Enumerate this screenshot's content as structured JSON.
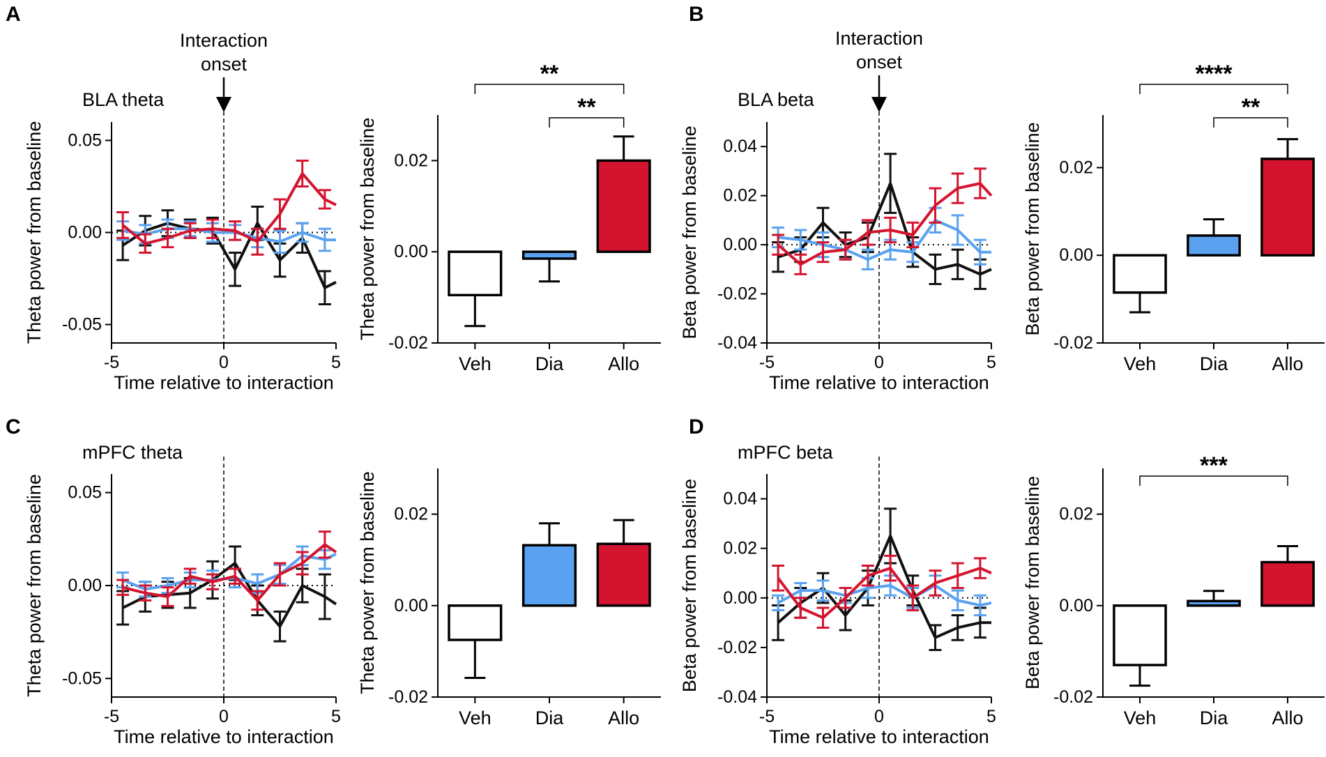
{
  "figure": {
    "shared": {
      "line_xlabel": "Time relative to interaction",
      "x_ticks": [
        "-5",
        "0",
        "5"
      ],
      "onset_label": [
        "Interaction",
        "onset"
      ]
    },
    "colors": {
      "veh": "#111111",
      "dia": "#5aa2f0",
      "allo": "#d4142e",
      "veh_bar_fill": "#ffffff"
    },
    "panels": [
      {
        "letter": "A",
        "line_title": "BLA theta",
        "ylabel": "Theta power from baseline",
        "show_onset": true,
        "line_yticks": [
          "0.05",
          "0.00",
          "-0.05"
        ],
        "bar_yticks": [
          "0.02",
          "0.00",
          "-0.02"
        ],
        "significance": [
          {
            "from": "Veh",
            "to": "Allo",
            "label": "**"
          },
          {
            "from": "Dia",
            "to": "Allo",
            "label": "**"
          }
        ]
      },
      {
        "letter": "B",
        "line_title": "BLA beta",
        "ylabel": "Beta power from baseline",
        "show_onset": true,
        "line_yticks": [
          "0.04",
          "0.02",
          "0.00",
          "-0.02",
          "-0.04"
        ],
        "bar_yticks": [
          "0.02",
          "0.00",
          "-0.02"
        ],
        "significance": [
          {
            "from": "Veh",
            "to": "Allo",
            "label": "****"
          },
          {
            "from": "Dia",
            "to": "Allo",
            "label": "**"
          }
        ]
      },
      {
        "letter": "C",
        "line_title": "mPFC theta",
        "ylabel": "Theta power from baseline",
        "show_onset": false,
        "line_yticks": [
          "0.05",
          "0.00",
          "-0.05"
        ],
        "bar_yticks": [
          "0.02",
          "0.00",
          "-0.02"
        ],
        "significance": []
      },
      {
        "letter": "D",
        "line_title": "mPFC beta",
        "ylabel": "Beta power from baseline",
        "show_onset": false,
        "line_yticks": [
          "0.04",
          "0.02",
          "0.00",
          "-0.02",
          "-0.04"
        ],
        "bar_yticks": [
          "0.02",
          "0.00",
          "-0.02"
        ],
        "significance": [
          {
            "from": "Veh",
            "to": "Allo",
            "label": "***"
          }
        ]
      }
    ]
  },
  "chart_data": [
    {
      "panel": "A",
      "type": "line",
      "title": "BLA theta",
      "xlabel": "Time relative to interaction",
      "ylabel": "Theta power from baseline",
      "xlim": [
        -5,
        5
      ],
      "ylim": [
        -0.06,
        0.06
      ],
      "x": [
        -4.5,
        -3.5,
        -2.5,
        -1.5,
        -0.5,
        0.5,
        1.5,
        2.5,
        3.5,
        4.5,
        5
      ],
      "series": [
        {
          "name": "Veh",
          "values": [
            -0.007,
            0.001,
            0.005,
            0.002,
            0.001,
            -0.02,
            0.005,
            -0.015,
            -0.003,
            -0.03,
            -0.027
          ],
          "errors": [
            0.008,
            0.008,
            0.007,
            0.005,
            0.007,
            0.009,
            0.009,
            0.009,
            0.008,
            0.009,
            0
          ]
        },
        {
          "name": "Dia",
          "values": [
            0.001,
            -0.001,
            0.002,
            0.002,
            0.0,
            0.0,
            -0.003,
            -0.005,
            0.0,
            -0.004,
            -0.004
          ],
          "errors": [
            0.005,
            0.005,
            0.005,
            0.004,
            0.005,
            0.004,
            0.005,
            0.006,
            0.005,
            0.006,
            0
          ]
        },
        {
          "name": "Allo",
          "values": [
            0.004,
            -0.006,
            -0.003,
            0.001,
            0.002,
            0.001,
            -0.005,
            0.01,
            0.032,
            0.018,
            0.015
          ],
          "errors": [
            0.007,
            0.005,
            0.005,
            0.004,
            0.005,
            0.005,
            0.007,
            0.008,
            0.007,
            0.005,
            0
          ]
        }
      ]
    },
    {
      "panel": "A",
      "type": "bar",
      "ylabel": "Theta power from baseline",
      "categories": [
        "Veh",
        "Dia",
        "Allo"
      ],
      "ylim": [
        -0.02,
        0.03
      ],
      "values": [
        -0.0095,
        -0.0015,
        0.02
      ],
      "errors": [
        0.0068,
        0.005,
        0.0053
      ]
    },
    {
      "panel": "B",
      "type": "line",
      "title": "BLA beta",
      "xlabel": "Time relative to interaction",
      "ylabel": "Beta power from baseline",
      "xlim": [
        -5,
        5
      ],
      "ylim": [
        -0.04,
        0.05
      ],
      "x": [
        -4.5,
        -3.5,
        -2.5,
        -1.5,
        -0.5,
        0.5,
        1.5,
        2.5,
        3.5,
        4.5,
        5
      ],
      "series": [
        {
          "name": "Veh",
          "values": [
            -0.005,
            -0.002,
            0.009,
            0.0,
            0.003,
            0.025,
            -0.003,
            -0.01,
            -0.008,
            -0.012,
            -0.01
          ],
          "errors": [
            0.006,
            0.005,
            0.006,
            0.005,
            0.006,
            0.012,
            0.006,
            0.006,
            0.006,
            0.006,
            0
          ]
        },
        {
          "name": "Dia",
          "values": [
            0.003,
            0.002,
            0.0,
            -0.002,
            -0.006,
            -0.002,
            -0.003,
            0.01,
            0.006,
            -0.003,
            -0.003
          ],
          "errors": [
            0.004,
            0.004,
            0.005,
            0.004,
            0.004,
            0.004,
            0.004,
            0.005,
            0.006,
            0.005,
            0
          ]
        },
        {
          "name": "Allo",
          "values": [
            0.0,
            -0.008,
            -0.003,
            -0.002,
            0.005,
            0.006,
            0.004,
            0.016,
            0.023,
            0.025,
            0.02
          ],
          "errors": [
            0.004,
            0.004,
            0.004,
            0.004,
            0.005,
            0.005,
            0.005,
            0.007,
            0.006,
            0.006,
            0
          ]
        }
      ]
    },
    {
      "panel": "B",
      "type": "bar",
      "ylabel": "Beta power from baseline",
      "categories": [
        "Veh",
        "Dia",
        "Allo"
      ],
      "ylim": [
        -0.02,
        0.032
      ],
      "values": [
        -0.0085,
        0.0045,
        0.022
      ],
      "errors": [
        0.0045,
        0.0037,
        0.0045
      ]
    },
    {
      "panel": "C",
      "type": "line",
      "title": "mPFC theta",
      "xlabel": "Time relative to interaction",
      "ylabel": "Theta power from baseline",
      "xlim": [
        -5,
        5
      ],
      "ylim": [
        -0.06,
        0.06
      ],
      "x": [
        -4.5,
        -3.5,
        -2.5,
        -1.5,
        -0.5,
        0.5,
        1.5,
        2.5,
        3.5,
        4.5,
        5
      ],
      "series": [
        {
          "name": "Veh",
          "values": [
            -0.012,
            -0.006,
            -0.005,
            -0.004,
            0.003,
            0.012,
            -0.008,
            -0.022,
            0.0,
            -0.006,
            -0.01
          ],
          "errors": [
            0.009,
            0.008,
            0.007,
            0.008,
            0.01,
            0.009,
            0.008,
            0.008,
            0.009,
            0.012,
            0
          ]
        },
        {
          "name": "Dia",
          "values": [
            0.003,
            -0.002,
            0.0,
            0.003,
            0.003,
            0.004,
            0.001,
            0.006,
            0.016,
            0.014,
            0.017
          ],
          "errors": [
            0.004,
            0.004,
            0.004,
            0.004,
            0.005,
            0.005,
            0.005,
            0.005,
            0.005,
            0.005,
            0
          ]
        },
        {
          "name": "Allo",
          "values": [
            -0.001,
            -0.004,
            -0.006,
            0.005,
            0.002,
            0.005,
            -0.008,
            0.006,
            0.012,
            0.022,
            0.018
          ],
          "errors": [
            0.004,
            0.004,
            0.005,
            0.004,
            0.004,
            0.004,
            0.005,
            0.006,
            0.006,
            0.007,
            0
          ]
        }
      ]
    },
    {
      "panel": "C",
      "type": "bar",
      "ylabel": "Theta power from baseline",
      "categories": [
        "Veh",
        "Dia",
        "Allo"
      ],
      "ylim": [
        -0.02,
        0.03
      ],
      "values": [
        -0.0075,
        0.0132,
        0.0135
      ],
      "errors": [
        0.0083,
        0.0048,
        0.0052
      ]
    },
    {
      "panel": "D",
      "type": "line",
      "title": "mPFC beta",
      "xlabel": "Time relative to interaction",
      "ylabel": "Beta power from baseline",
      "xlim": [
        -5,
        5
      ],
      "ylim": [
        -0.04,
        0.05
      ],
      "x": [
        -4.5,
        -3.5,
        -2.5,
        -1.5,
        -0.5,
        0.5,
        1.5,
        2.5,
        3.5,
        4.5,
        5
      ],
      "series": [
        {
          "name": "Veh",
          "values": [
            -0.01,
            -0.002,
            0.004,
            -0.007,
            0.004,
            0.025,
            0.003,
            -0.016,
            -0.012,
            -0.01,
            -0.01
          ],
          "errors": [
            0.007,
            0.006,
            0.006,
            0.006,
            0.007,
            0.011,
            0.006,
            0.005,
            0.005,
            0.006,
            0
          ]
        },
        {
          "name": "Dia",
          "values": [
            -0.002,
            0.003,
            0.003,
            0.001,
            0.004,
            0.005,
            0.0,
            0.005,
            -0.001,
            -0.003,
            -0.002
          ],
          "errors": [
            0.003,
            0.003,
            0.004,
            0.003,
            0.004,
            0.004,
            0.004,
            0.004,
            0.004,
            0.004,
            0
          ]
        },
        {
          "name": "Allo",
          "values": [
            0.008,
            -0.004,
            -0.008,
            0.0,
            0.009,
            0.012,
            0.0,
            0.006,
            0.009,
            0.012,
            0.01
          ],
          "errors": [
            0.005,
            0.004,
            0.004,
            0.004,
            0.004,
            0.005,
            0.005,
            0.005,
            0.005,
            0.004,
            0
          ]
        }
      ]
    },
    {
      "panel": "D",
      "type": "bar",
      "ylabel": "Beta power from baseline",
      "categories": [
        "Veh",
        "Dia",
        "Allo"
      ],
      "ylim": [
        -0.02,
        0.03
      ],
      "values": [
        -0.013,
        0.001,
        0.0095
      ],
      "errors": [
        0.0045,
        0.0022,
        0.0035
      ]
    }
  ]
}
